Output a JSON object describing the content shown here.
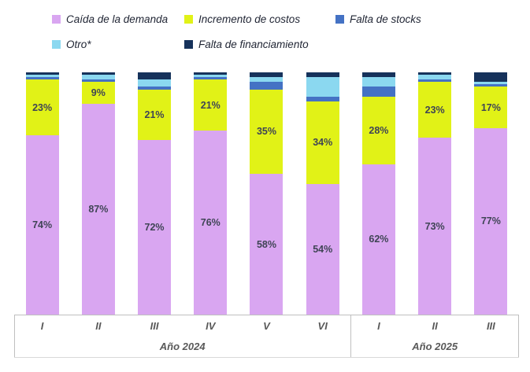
{
  "legend": {
    "items": [
      {
        "label": "Caída de la demanda",
        "color": "#d9a6f1"
      },
      {
        "label": "Incremento de costos",
        "color": "#e1f217"
      },
      {
        "label": "Falta de stocks",
        "color": "#4472c4"
      },
      {
        "label": "Otro*",
        "color": "#8bd8f0"
      },
      {
        "label": "Falta de financiamiento",
        "color": "#16325b"
      }
    ]
  },
  "chart_data": {
    "type": "bar",
    "stacked": true,
    "percent": true,
    "title": "",
    "xlabel": "",
    "ylabel": "",
    "ylim": [
      0,
      100
    ],
    "grid": false,
    "legend_position": "top",
    "categories": [
      "I",
      "II",
      "III",
      "IV",
      "V",
      "VI",
      "I",
      "II",
      "III"
    ],
    "groups": [
      {
        "label": "Año 2024",
        "span": 6
      },
      {
        "label": "Año 2025",
        "span": 3
      }
    ],
    "series": [
      {
        "name": "Caída de la demanda",
        "key": "caida-demanda",
        "color": "#d9a6f1",
        "values": [
          74,
          87,
          72,
          76,
          58,
          54,
          62,
          73,
          77
        ],
        "labels": [
          "74%",
          "87%",
          "72%",
          "76%",
          "58%",
          "54%",
          "62%",
          "73%",
          "77%"
        ]
      },
      {
        "name": "Incremento de costos",
        "key": "incremento-costos",
        "color": "#e1f217",
        "values": [
          23,
          9,
          21,
          21,
          35,
          34,
          28,
          23,
          17
        ],
        "labels": [
          "23%",
          "9%",
          "21%",
          "21%",
          "35%",
          "34%",
          "28%",
          "23%",
          "17%"
        ]
      },
      {
        "name": "Falta de stocks",
        "key": "falta-stocks",
        "color": "#4472c4",
        "values": [
          1,
          1,
          1,
          1,
          3,
          2,
          4,
          1,
          1
        ],
        "labels": []
      },
      {
        "name": "Otro*",
        "key": "otro",
        "color": "#8bd8f0",
        "values": [
          1,
          2,
          3,
          1,
          2,
          8,
          4,
          2,
          1
        ],
        "labels": []
      },
      {
        "name": "Falta de financiamiento",
        "key": "falta-financiamiento",
        "color": "#16325b",
        "values": [
          1,
          1,
          3,
          1,
          2,
          2,
          2,
          1,
          4
        ],
        "labels": []
      }
    ]
  }
}
